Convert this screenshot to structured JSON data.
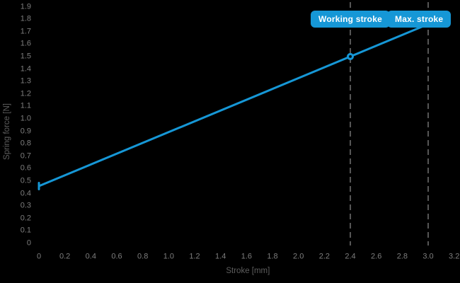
{
  "colors": {
    "background": "#000000",
    "accent_blue": "#1697d6",
    "badge_text": "#ffffff",
    "tick_label": "#7d7d7d",
    "axis_title": "#5e5e5e",
    "guide_line": "#575757",
    "marker_center": "#001018"
  },
  "chart_data": {
    "type": "line",
    "xlabel": "Stroke [mm]",
    "ylabel": "Spring force [N]",
    "xlim": [
      0,
      3.2
    ],
    "ylim": [
      0,
      1.9
    ],
    "x_tick_labels": [
      "0",
      "0.2",
      "0.4",
      "0.6",
      "0.8",
      "1.0",
      "1.2",
      "1.4",
      "1.6",
      "1.8",
      "2.0",
      "2.2",
      "2.4",
      "2.6",
      "2.8",
      "3.0",
      "3.2"
    ],
    "y_tick_labels": [
      "0",
      "0.1",
      "0.2",
      "0.3",
      "0.4",
      "0.5",
      "0.6",
      "0.7",
      "0.8",
      "0.9",
      "1.0",
      "1.1",
      "1.2",
      "1.3",
      "1.4",
      "1.5",
      "1.6",
      "1.7",
      "1.8",
      "1.9"
    ],
    "grid": false,
    "legend": false,
    "series": [
      {
        "x": [
          0,
          2.4,
          3.0
        ],
        "y": [
          0.46,
          1.5,
          1.76
        ],
        "color": "#1697d6",
        "markers": [
          {
            "x": 0,
            "y": 0.46,
            "shape": "vertical-dash"
          },
          {
            "x": 2.4,
            "y": 1.5,
            "shape": "open-circle"
          }
        ]
      }
    ],
    "annotations": [
      {
        "label": "Working stroke",
        "x": 2.4,
        "line_style": "dashed"
      },
      {
        "label": "Max. stroke",
        "x": 3.0,
        "line_style": "dashed"
      }
    ]
  }
}
